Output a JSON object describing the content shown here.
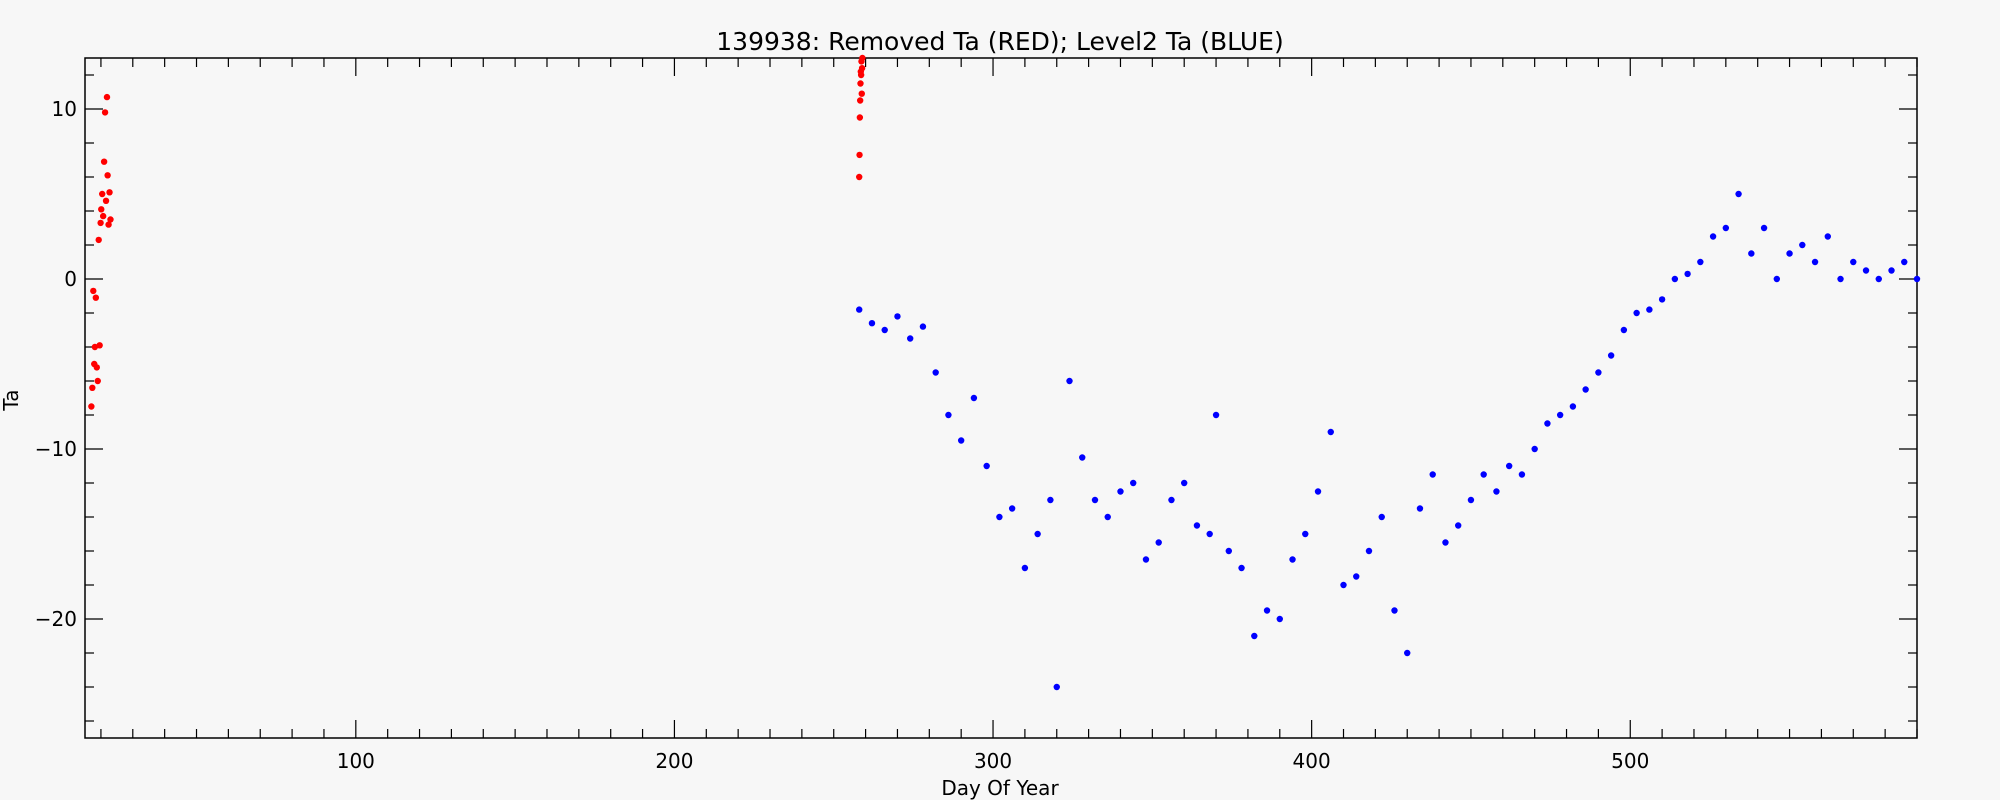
{
  "chart_data": {
    "type": "scatter",
    "title": "139938: Removed Ta (RED); Level2 Ta (BLUE)",
    "xlabel": "Day Of Year",
    "ylabel": "Ta",
    "xlim": [
      15,
      590
    ],
    "ylim": [
      -27,
      13
    ],
    "x_ticks": [
      100,
      200,
      300,
      400,
      500
    ],
    "x_tick_labels": [
      "100",
      "200",
      "300",
      "400",
      "500"
    ],
    "y_ticks": [
      10,
      0,
      -10,
      -20
    ],
    "y_tick_labels": [
      "10",
      "0",
      "−10",
      "−20"
    ],
    "grid": false,
    "colors": {
      "removed": "#ff0000",
      "level2": "#0000ff"
    },
    "series": [
      {
        "name": "Removed Ta",
        "color": "#ff0000",
        "x": [
          17.0,
          17.3,
          17.6,
          17.9,
          18.1,
          18.4,
          18.7,
          19.0,
          19.3,
          19.6,
          19.9,
          20.1,
          20.4,
          20.7,
          21.0,
          21.3,
          21.6,
          21.9,
          22.1,
          22.4,
          22.7,
          23.0,
          258.0,
          258.1,
          258.2,
          258.3,
          258.4,
          258.5,
          258.6,
          258.7,
          258.8,
          258.9,
          259.0
        ],
        "y": [
          -7.5,
          -6.4,
          -0.7,
          -5.0,
          -4.0,
          -1.1,
          -5.2,
          -6.0,
          2.3,
          -3.9,
          3.3,
          4.1,
          5.0,
          3.7,
          6.9,
          9.8,
          4.6,
          10.7,
          6.1,
          3.2,
          5.1,
          3.5,
          6.0,
          7.3,
          9.5,
          10.5,
          11.5,
          12.2,
          12.0,
          12.8,
          10.9,
          12.4,
          13.0
        ]
      },
      {
        "name": "Level2 Ta",
        "color": "#0000ff",
        "x": [
          258,
          262,
          266,
          270,
          274,
          278,
          282,
          286,
          290,
          294,
          298,
          302,
          306,
          310,
          314,
          318,
          320,
          324,
          328,
          332,
          336,
          340,
          344,
          348,
          352,
          356,
          360,
          364,
          368,
          370,
          374,
          378,
          382,
          386,
          390,
          394,
          398,
          402,
          406,
          410,
          414,
          418,
          422,
          426,
          430,
          434,
          438,
          442,
          446,
          450,
          454,
          458,
          462,
          466,
          470,
          474,
          478,
          482,
          486,
          490,
          494,
          498,
          502,
          506,
          510,
          514,
          518,
          522,
          526,
          530,
          534,
          538,
          542,
          546,
          550,
          554,
          558,
          562,
          566,
          570,
          574,
          578,
          582,
          586,
          590
        ],
        "y": [
          -1.8,
          -2.6,
          -3.0,
          -2.2,
          -3.5,
          -2.8,
          -5.5,
          -8.0,
          -9.5,
          -7.0,
          -11.0,
          -14.0,
          -13.5,
          -17.0,
          -15.0,
          -13.0,
          -24.0,
          -6.0,
          -10.5,
          -13.0,
          -14.0,
          -12.5,
          -12.0,
          -16.5,
          -15.5,
          -13.0,
          -12.0,
          -14.5,
          -15.0,
          -8.0,
          -16.0,
          -17.0,
          -21.0,
          -19.5,
          -20.0,
          -16.5,
          -15.0,
          -12.5,
          -9.0,
          -18.0,
          -17.5,
          -16.0,
          -14.0,
          -19.5,
          -22.0,
          -13.5,
          -11.5,
          -15.5,
          -14.5,
          -13.0,
          -11.5,
          -12.5,
          -11.0,
          -11.5,
          -10.0,
          -8.5,
          -8.0,
          -7.5,
          -6.5,
          -5.5,
          -4.5,
          -3.0,
          -2.0,
          -1.8,
          -1.2,
          0.0,
          0.3,
          1.0,
          2.5,
          3.0,
          5.0,
          1.5,
          3.0,
          0.0,
          1.5,
          2.0,
          1.0,
          2.5,
          0.0,
          1.0,
          0.5,
          0.0,
          0.5,
          1.0,
          0.0
        ]
      }
    ]
  }
}
